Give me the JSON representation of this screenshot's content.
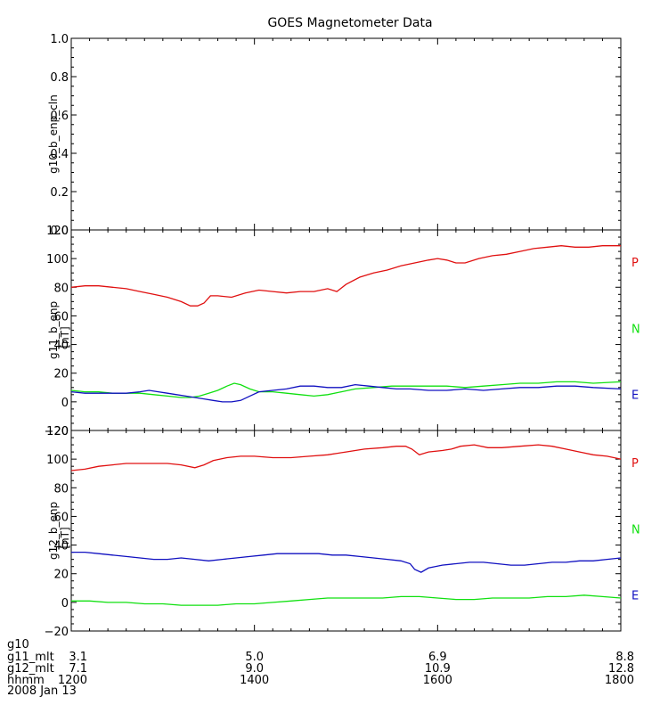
{
  "title": "GOES Magnetometer Data",
  "colors": {
    "P": "#e01010",
    "N": "#10e010",
    "E": "#1010c0"
  },
  "chart_data": [
    {
      "type": "line",
      "panel": "g10",
      "ylabel": "g10_b_enp_cln",
      "units": "",
      "xlim": [
        1200,
        1800
      ],
      "ylim": [
        0,
        1.0
      ],
      "yticks": [
        "0.0",
        "0.2",
        "0.4",
        "0.6",
        "0.8",
        "1.0"
      ],
      "ytick_values": [
        0,
        0.2,
        0.4,
        0.6,
        0.8,
        1.0
      ],
      "series": []
    },
    {
      "type": "line",
      "panel": "g11",
      "ylabel": "g11_b_enp",
      "units": "[nT]",
      "xlim": [
        1200,
        1800
      ],
      "ylim": [
        -20,
        120
      ],
      "yticks": [
        "−20",
        "0",
        "20",
        "40",
        "60",
        "80",
        "100",
        "120"
      ],
      "ytick_values": [
        -20,
        0,
        20,
        40,
        60,
        80,
        100,
        120
      ],
      "series": [
        {
          "name": "P",
          "color_key": "P",
          "x": [
            1200,
            1215,
            1230,
            1245,
            1260,
            1275,
            1290,
            1305,
            1320,
            1330,
            1338,
            1345,
            1352,
            1360,
            1375,
            1390,
            1405,
            1420,
            1435,
            1450,
            1465,
            1480,
            1490,
            1500,
            1515,
            1530,
            1545,
            1560,
            1575,
            1590,
            1600,
            1610,
            1620,
            1630,
            1645,
            1660,
            1675,
            1690,
            1705,
            1720,
            1735,
            1750,
            1765,
            1780,
            1800
          ],
          "y": [
            80,
            81,
            81,
            80,
            79,
            77,
            75,
            73,
            70,
            67,
            67,
            69,
            74,
            74,
            73,
            76,
            78,
            77,
            76,
            77,
            77,
            79,
            77,
            82,
            87,
            90,
            92,
            95,
            97,
            99,
            100,
            99,
            97,
            97,
            100,
            102,
            103,
            105,
            107,
            108,
            109,
            108,
            108,
            109,
            109
          ]
        },
        {
          "name": "N",
          "color_key": "N",
          "x": [
            1200,
            1215,
            1230,
            1245,
            1260,
            1275,
            1290,
            1305,
            1320,
            1330,
            1340,
            1350,
            1360,
            1370,
            1378,
            1385,
            1395,
            1405,
            1420,
            1435,
            1450,
            1465,
            1480,
            1495,
            1510,
            1530,
            1550,
            1570,
            1590,
            1610,
            1630,
            1650,
            1670,
            1690,
            1710,
            1730,
            1750,
            1770,
            1800
          ],
          "y": [
            8,
            7,
            7,
            6,
            6,
            6,
            5,
            4,
            3,
            3,
            4,
            6,
            8,
            11,
            13,
            12,
            9,
            7,
            7,
            6,
            5,
            4,
            5,
            7,
            9,
            10,
            11,
            11,
            11,
            11,
            10,
            11,
            12,
            13,
            13,
            14,
            14,
            13,
            14
          ]
        },
        {
          "name": "E",
          "color_key": "E",
          "x": [
            1200,
            1215,
            1230,
            1245,
            1260,
            1275,
            1285,
            1295,
            1305,
            1315,
            1325,
            1335,
            1345,
            1355,
            1365,
            1375,
            1385,
            1395,
            1405,
            1420,
            1435,
            1450,
            1465,
            1480,
            1495,
            1510,
            1525,
            1540,
            1555,
            1570,
            1590,
            1610,
            1630,
            1650,
            1670,
            1690,
            1710,
            1730,
            1750,
            1770,
            1800
          ],
          "y": [
            7,
            6,
            6,
            6,
            6,
            7,
            8,
            7,
            6,
            5,
            4,
            3,
            2,
            1,
            0,
            0,
            1,
            4,
            7,
            8,
            9,
            11,
            11,
            10,
            10,
            12,
            11,
            10,
            9,
            9,
            8,
            8,
            9,
            8,
            9,
            10,
            10,
            11,
            11,
            10,
            9
          ]
        }
      ]
    },
    {
      "type": "line",
      "panel": "g12",
      "ylabel": "g12_b_enp",
      "units": "[nT]",
      "xlim": [
        1200,
        1800
      ],
      "ylim": [
        -20,
        120
      ],
      "yticks": [
        "−20",
        "0",
        "20",
        "40",
        "60",
        "80",
        "100",
        "120"
      ],
      "ytick_values": [
        -20,
        0,
        20,
        40,
        60,
        80,
        100,
        120
      ],
      "series": [
        {
          "name": "P",
          "color_key": "P",
          "x": [
            1200,
            1215,
            1230,
            1245,
            1260,
            1275,
            1290,
            1305,
            1320,
            1335,
            1345,
            1355,
            1370,
            1385,
            1400,
            1420,
            1440,
            1460,
            1480,
            1500,
            1520,
            1540,
            1555,
            1565,
            1572,
            1580,
            1590,
            1605,
            1615,
            1625,
            1640,
            1655,
            1670,
            1690,
            1710,
            1725,
            1740,
            1755,
            1770,
            1785,
            1800
          ],
          "y": [
            92,
            93,
            95,
            96,
            97,
            97,
            97,
            97,
            96,
            94,
            96,
            99,
            101,
            102,
            102,
            101,
            101,
            102,
            103,
            105,
            107,
            108,
            109,
            109,
            107,
            103,
            105,
            106,
            107,
            109,
            110,
            108,
            108,
            109,
            110,
            109,
            107,
            105,
            103,
            102,
            100
          ]
        },
        {
          "name": "N",
          "color_key": "N",
          "x": [
            1200,
            1220,
            1240,
            1260,
            1280,
            1300,
            1320,
            1340,
            1360,
            1380,
            1400,
            1420,
            1440,
            1460,
            1480,
            1500,
            1520,
            1540,
            1560,
            1580,
            1600,
            1620,
            1640,
            1660,
            1680,
            1700,
            1720,
            1740,
            1760,
            1780,
            1800
          ],
          "y": [
            1,
            1,
            0,
            0,
            -1,
            -1,
            -2,
            -2,
            -2,
            -1,
            -1,
            0,
            1,
            2,
            3,
            3,
            3,
            3,
            4,
            4,
            3,
            2,
            2,
            3,
            3,
            3,
            4,
            4,
            5,
            4,
            3
          ]
        },
        {
          "name": "E",
          "color_key": "E",
          "x": [
            1200,
            1215,
            1230,
            1245,
            1260,
            1275,
            1290,
            1305,
            1320,
            1335,
            1350,
            1365,
            1380,
            1395,
            1410,
            1425,
            1440,
            1455,
            1470,
            1485,
            1500,
            1515,
            1530,
            1545,
            1560,
            1570,
            1575,
            1582,
            1590,
            1605,
            1620,
            1635,
            1650,
            1665,
            1680,
            1695,
            1710,
            1725,
            1740,
            1755,
            1770,
            1785,
            1800
          ],
          "y": [
            35,
            35,
            34,
            33,
            32,
            31,
            30,
            30,
            31,
            30,
            29,
            30,
            31,
            32,
            33,
            34,
            34,
            34,
            34,
            33,
            33,
            32,
            31,
            30,
            29,
            27,
            23,
            21,
            24,
            26,
            27,
            28,
            28,
            27,
            26,
            26,
            27,
            28,
            28,
            29,
            29,
            30,
            31
          ]
        }
      ]
    }
  ],
  "footer": {
    "row_labels": [
      "g10",
      "g11_mlt",
      "g12_mlt",
      "hhmm",
      "2008 Jan 13"
    ],
    "g11_mlt": [
      "3.1",
      "5.0",
      "6.9",
      "8.8"
    ],
    "g12_mlt": [
      "7.1",
      "9.0",
      "10.9",
      "12.8"
    ],
    "hhmm": [
      "1200",
      "1400",
      "1600",
      "1800"
    ],
    "hhmm_values": [
      1200,
      1400,
      1600,
      1800
    ]
  }
}
